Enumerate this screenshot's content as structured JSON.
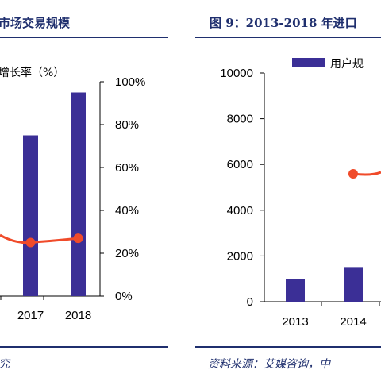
{
  "left_panel": {
    "title": "市场交易规模",
    "legend_label": "增长率（%）",
    "source": "究",
    "y2_ticks": [
      "100%",
      "80%",
      "60%",
      "40%",
      "20%",
      "0%"
    ],
    "x_ticks": [
      "2017",
      "2018"
    ]
  },
  "right_panel": {
    "title": "图 9：2013-2018 年进口",
    "legend_label": "用户规",
    "source": "资料来源：艾媒咨询，中",
    "y_ticks": [
      "10000",
      "8000",
      "6000",
      "4000",
      "2000",
      "0"
    ],
    "x_ticks": [
      "2013",
      "2014"
    ]
  },
  "colors": {
    "bar": "#3b2f96",
    "line": "#f04b2a",
    "rule": "#1f2f6e"
  },
  "chart_data": [
    {
      "type": "bar",
      "title": "市场交易规模",
      "categories": [
        "2017",
        "2018"
      ],
      "series": [
        {
          "type": "bar",
          "axis": "left",
          "values_relative_to_axis_top": [
            0.75,
            0.95
          ]
        },
        {
          "name": "增长率（%）",
          "type": "line",
          "axis": "right",
          "values": [
            25,
            27
          ]
        }
      ],
      "y2_range": [
        0,
        100
      ],
      "y2_unit": "%"
    },
    {
      "type": "bar",
      "title": "2013-2018 年进口",
      "categories": [
        "2013",
        "2014"
      ],
      "ylim": [
        0,
        10000
      ],
      "series": [
        {
          "name": "用户规",
          "type": "bar",
          "values": [
            1000,
            1480
          ]
        },
        {
          "type": "line",
          "axis": "right",
          "values": [
            null,
            "visible start point"
          ]
        }
      ]
    }
  ]
}
